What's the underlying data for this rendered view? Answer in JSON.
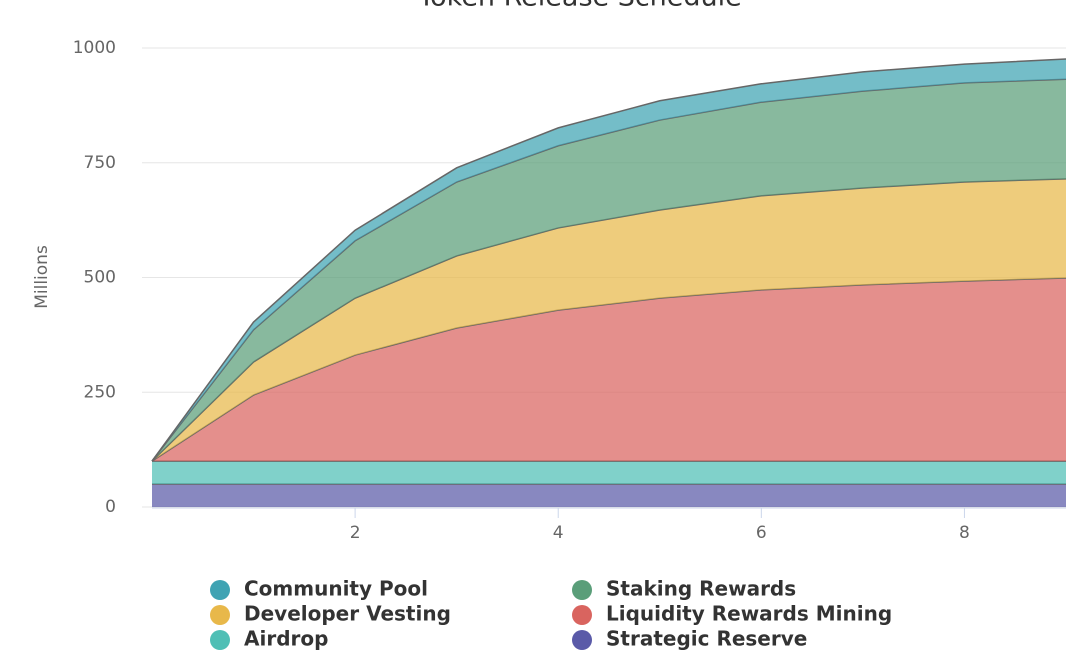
{
  "chart_data": {
    "type": "stacked-area",
    "title": "Token Release Schedule",
    "y_label": "Millions",
    "x": [
      0,
      1,
      2,
      3,
      4,
      5,
      6,
      7,
      8,
      9
    ],
    "xlim": [
      0,
      9
    ],
    "xticks": [
      2,
      4,
      6,
      8
    ],
    "ylim": [
      0,
      1000
    ],
    "yticks": [
      0,
      250,
      500,
      750,
      1000
    ],
    "grid": true,
    "legend": "bottom",
    "series": [
      {
        "name": "Community Pool",
        "color": "#3fa3b3",
        "values": [
          0,
          17,
          23,
          31,
          39,
          42,
          40,
          42,
          41,
          44
        ]
      },
      {
        "name": "Staking Rewards",
        "color": "#5a9e79",
        "values": [
          0,
          70,
          125,
          161,
          179,
          196,
          204,
          211,
          216,
          217
        ]
      },
      {
        "name": "Developer Vesting",
        "color": "#e8b84a",
        "values": [
          0,
          72,
          124,
          157,
          179,
          192,
          205,
          211,
          216,
          216
        ]
      },
      {
        "name": "Liquidity Rewards Mining",
        "color": "#d9645f",
        "values": [
          0,
          144,
          231,
          290,
          329,
          355,
          373,
          384,
          392,
          399
        ]
      },
      {
        "name": "Airdrop",
        "color": "#4fbfb5",
        "values": [
          50,
          50,
          50,
          50,
          50,
          50,
          50,
          50,
          50,
          50
        ]
      },
      {
        "name": "Strategic Reserve",
        "color": "#5a5aa8",
        "values": [
          50,
          50,
          50,
          50,
          50,
          50,
          50,
          50,
          50,
          50
        ]
      }
    ]
  }
}
